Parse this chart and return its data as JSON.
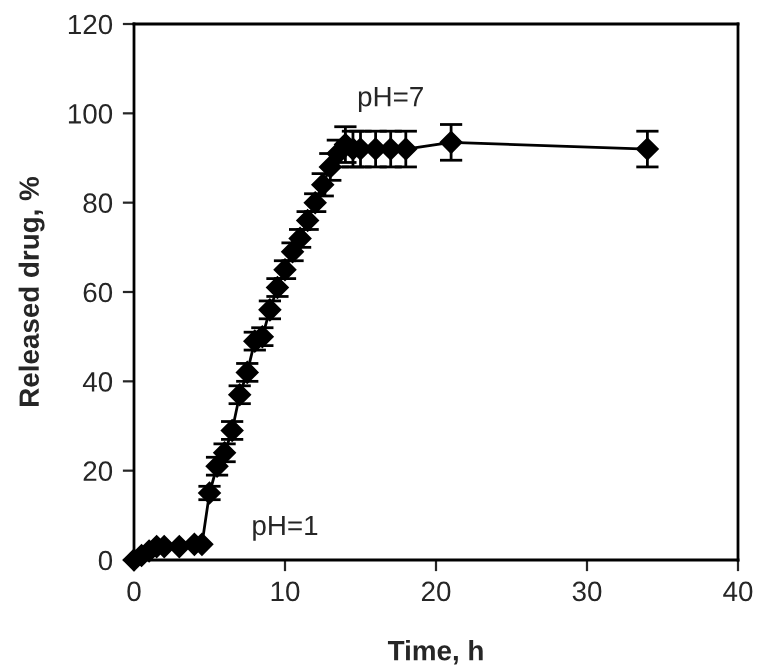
{
  "chart_data": {
    "type": "line",
    "xlabel": "Time, h",
    "ylabel": "Released drug, %",
    "x": [
      0,
      0.5,
      1,
      1.5,
      2,
      3,
      4,
      4.5,
      5,
      5.5,
      6,
      6.5,
      7,
      7.5,
      8,
      8.5,
      9,
      9.5,
      10,
      10.5,
      11,
      11.5,
      12,
      12.5,
      13,
      13.5,
      14,
      14.5,
      15,
      16,
      17,
      18,
      21,
      34
    ],
    "values": [
      0,
      1,
      2,
      3,
      3,
      3,
      3.5,
      3.5,
      15,
      21,
      24,
      29,
      37,
      42,
      49,
      50,
      56,
      61,
      65,
      69,
      72,
      76,
      80,
      84,
      88,
      91,
      93,
      92,
      92,
      92,
      92,
      92,
      93.5,
      92
    ],
    "errors": [
      null,
      null,
      null,
      null,
      null,
      null,
      null,
      null,
      1.5,
      2,
      2,
      2,
      2,
      2,
      2,
      2,
      2,
      2,
      2,
      2,
      2,
      2,
      2,
      2.5,
      3,
      3,
      4,
      4,
      4,
      4,
      4,
      4,
      4,
      4
    ],
    "color": "#000000",
    "marker": "diamond",
    "line_style": "solid",
    "grid": false,
    "legend": false,
    "xlim": [
      0,
      40
    ],
    "xticks": [
      0,
      10,
      20,
      30,
      40
    ],
    "ylim": [
      0,
      120
    ],
    "yticks": [
      0,
      20,
      40,
      60,
      80,
      100,
      120
    ],
    "annotations": [
      "pH=1",
      "pH=7"
    ]
  }
}
